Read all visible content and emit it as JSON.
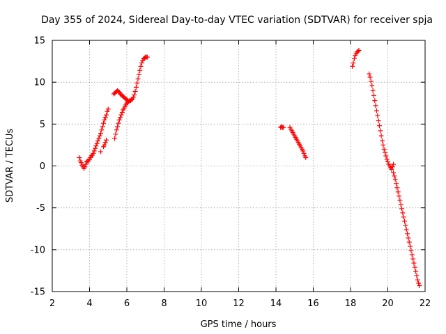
{
  "chart_data": {
    "type": "scatter",
    "title": "Day 355 of 2024, Sidereal Day-to-day VTEC variation (SDTVAR) for receiver spja",
    "xlabel": "GPS time / hours",
    "ylabel": "SDTVAR / TECUs",
    "xlim": [
      2,
      22
    ],
    "ylim": [
      -15,
      15
    ],
    "x_ticks": [
      2,
      4,
      6,
      8,
      10,
      12,
      14,
      16,
      18,
      20,
      22
    ],
    "y_ticks": [
      -15,
      -10,
      -5,
      0,
      5,
      10,
      15
    ],
    "grid": true,
    "marker": "+",
    "series": [
      {
        "name": "SDTVAR",
        "color": "#ff0000",
        "points": [
          [
            3.45,
            1.0
          ],
          [
            3.5,
            0.6
          ],
          [
            3.55,
            0.4
          ],
          [
            3.6,
            0.1
          ],
          [
            3.65,
            -0.1
          ],
          [
            3.7,
            -0.3
          ],
          [
            3.75,
            -0.1
          ],
          [
            3.8,
            0.2
          ],
          [
            3.85,
            0.5
          ],
          [
            3.9,
            0.6
          ],
          [
            3.95,
            0.6
          ],
          [
            4.0,
            0.8
          ],
          [
            4.05,
            1.0
          ],
          [
            4.1,
            1.2
          ],
          [
            4.15,
            1.3
          ],
          [
            4.2,
            1.5
          ],
          [
            4.25,
            1.8
          ],
          [
            4.3,
            2.1
          ],
          [
            4.35,
            2.4
          ],
          [
            4.4,
            2.7
          ],
          [
            4.45,
            3.0
          ],
          [
            4.5,
            3.3
          ],
          [
            4.55,
            3.6
          ],
          [
            4.6,
            3.9
          ],
          [
            4.65,
            4.3
          ],
          [
            4.7,
            4.7
          ],
          [
            4.75,
            5.1
          ],
          [
            4.8,
            5.5
          ],
          [
            4.85,
            5.8
          ],
          [
            4.9,
            6.1
          ],
          [
            4.95,
            6.5
          ],
          [
            5.0,
            6.8
          ],
          [
            4.6,
            1.7
          ],
          [
            4.75,
            2.3
          ],
          [
            4.8,
            2.5
          ],
          [
            4.85,
            2.8
          ],
          [
            4.9,
            3.1
          ],
          [
            5.3,
            8.6
          ],
          [
            5.35,
            8.7
          ],
          [
            5.4,
            8.8
          ],
          [
            5.45,
            8.9
          ],
          [
            5.5,
            9.0
          ],
          [
            5.55,
            8.9
          ],
          [
            5.6,
            8.8
          ],
          [
            5.65,
            8.6
          ],
          [
            5.7,
            8.5
          ],
          [
            5.75,
            8.4
          ],
          [
            5.8,
            8.3
          ],
          [
            5.85,
            8.2
          ],
          [
            5.9,
            8.1
          ],
          [
            5.95,
            8.0
          ],
          [
            6.0,
            7.9
          ],
          [
            6.05,
            7.8
          ],
          [
            5.35,
            3.3
          ],
          [
            5.4,
            3.8
          ],
          [
            5.45,
            4.3
          ],
          [
            5.5,
            4.7
          ],
          [
            5.55,
            5.1
          ],
          [
            5.6,
            5.5
          ],
          [
            5.65,
            5.8
          ],
          [
            5.7,
            6.1
          ],
          [
            5.75,
            6.4
          ],
          [
            5.8,
            6.7
          ],
          [
            5.85,
            6.9
          ],
          [
            5.9,
            7.1
          ],
          [
            5.95,
            7.3
          ],
          [
            6.0,
            7.5
          ],
          [
            6.05,
            7.6
          ],
          [
            6.1,
            7.7
          ],
          [
            6.15,
            7.8
          ],
          [
            6.2,
            7.8
          ],
          [
            6.25,
            7.9
          ],
          [
            6.3,
            8.0
          ],
          [
            6.35,
            8.2
          ],
          [
            6.4,
            8.5
          ],
          [
            6.45,
            8.9
          ],
          [
            6.5,
            9.4
          ],
          [
            6.55,
            9.9
          ],
          [
            6.6,
            10.4
          ],
          [
            6.65,
            10.9
          ],
          [
            6.7,
            11.4
          ],
          [
            6.75,
            11.9
          ],
          [
            6.8,
            12.3
          ],
          [
            6.85,
            12.6
          ],
          [
            6.9,
            12.8
          ],
          [
            6.95,
            12.9
          ],
          [
            7.0,
            13.0
          ],
          [
            7.05,
            13.0
          ],
          [
            7.1,
            13.0
          ],
          [
            14.25,
            4.6
          ],
          [
            14.3,
            4.7
          ],
          [
            14.35,
            4.6
          ],
          [
            14.4,
            4.6
          ],
          [
            14.75,
            4.6
          ],
          [
            14.8,
            4.4
          ],
          [
            14.85,
            4.2
          ],
          [
            14.9,
            4.0
          ],
          [
            14.95,
            3.8
          ],
          [
            15.0,
            3.6
          ],
          [
            15.05,
            3.4
          ],
          [
            15.1,
            3.2
          ],
          [
            15.15,
            3.0
          ],
          [
            15.2,
            2.8
          ],
          [
            15.25,
            2.6
          ],
          [
            15.3,
            2.4
          ],
          [
            15.35,
            2.2
          ],
          [
            15.4,
            2.0
          ],
          [
            15.45,
            1.8
          ],
          [
            15.5,
            1.5
          ],
          [
            15.55,
            1.2
          ],
          [
            15.6,
            1.0
          ],
          [
            18.1,
            11.9
          ],
          [
            18.15,
            12.3
          ],
          [
            18.2,
            12.8
          ],
          [
            18.25,
            13.2
          ],
          [
            18.3,
            13.4
          ],
          [
            18.35,
            13.6
          ],
          [
            18.4,
            13.7
          ],
          [
            18.45,
            13.8
          ],
          [
            19.0,
            11.0
          ],
          [
            19.05,
            10.6
          ],
          [
            19.1,
            10.1
          ],
          [
            19.15,
            9.6
          ],
          [
            19.2,
            9.0
          ],
          [
            19.25,
            8.4
          ],
          [
            19.3,
            7.8
          ],
          [
            19.35,
            7.2
          ],
          [
            19.4,
            6.6
          ],
          [
            19.45,
            6.0
          ],
          [
            19.5,
            5.4
          ],
          [
            19.55,
            4.8
          ],
          [
            19.6,
            4.2
          ],
          [
            19.65,
            3.6
          ],
          [
            19.7,
            3.0
          ],
          [
            19.75,
            2.5
          ],
          [
            19.8,
            2.0
          ],
          [
            19.85,
            1.6
          ],
          [
            19.9,
            1.2
          ],
          [
            19.95,
            0.8
          ],
          [
            20.0,
            0.5
          ],
          [
            20.05,
            0.2
          ],
          [
            20.1,
            0.0
          ],
          [
            20.15,
            -0.2
          ],
          [
            20.2,
            -0.4
          ],
          [
            20.25,
            -0.1
          ],
          [
            20.3,
            0.2
          ],
          [
            20.3,
            -0.8
          ],
          [
            20.35,
            -1.2
          ],
          [
            20.4,
            -1.6
          ],
          [
            20.45,
            -2.1
          ],
          [
            20.5,
            -2.6
          ],
          [
            20.55,
            -3.1
          ],
          [
            20.6,
            -3.6
          ],
          [
            20.65,
            -4.1
          ],
          [
            20.7,
            -4.6
          ],
          [
            20.75,
            -5.1
          ],
          [
            20.8,
            -5.6
          ],
          [
            20.85,
            -6.1
          ],
          [
            20.9,
            -6.6
          ],
          [
            20.95,
            -7.1
          ],
          [
            21.0,
            -7.6
          ],
          [
            21.05,
            -8.1
          ],
          [
            21.1,
            -8.6
          ],
          [
            21.15,
            -9.1
          ],
          [
            21.2,
            -9.6
          ],
          [
            21.25,
            -10.1
          ],
          [
            21.3,
            -10.6
          ],
          [
            21.35,
            -11.1
          ],
          [
            21.4,
            -11.6
          ],
          [
            21.45,
            -12.1
          ],
          [
            21.5,
            -12.6
          ],
          [
            21.55,
            -13.1
          ],
          [
            21.6,
            -13.6
          ],
          [
            21.65,
            -14.0
          ],
          [
            21.7,
            -14.3
          ]
        ]
      }
    ]
  }
}
